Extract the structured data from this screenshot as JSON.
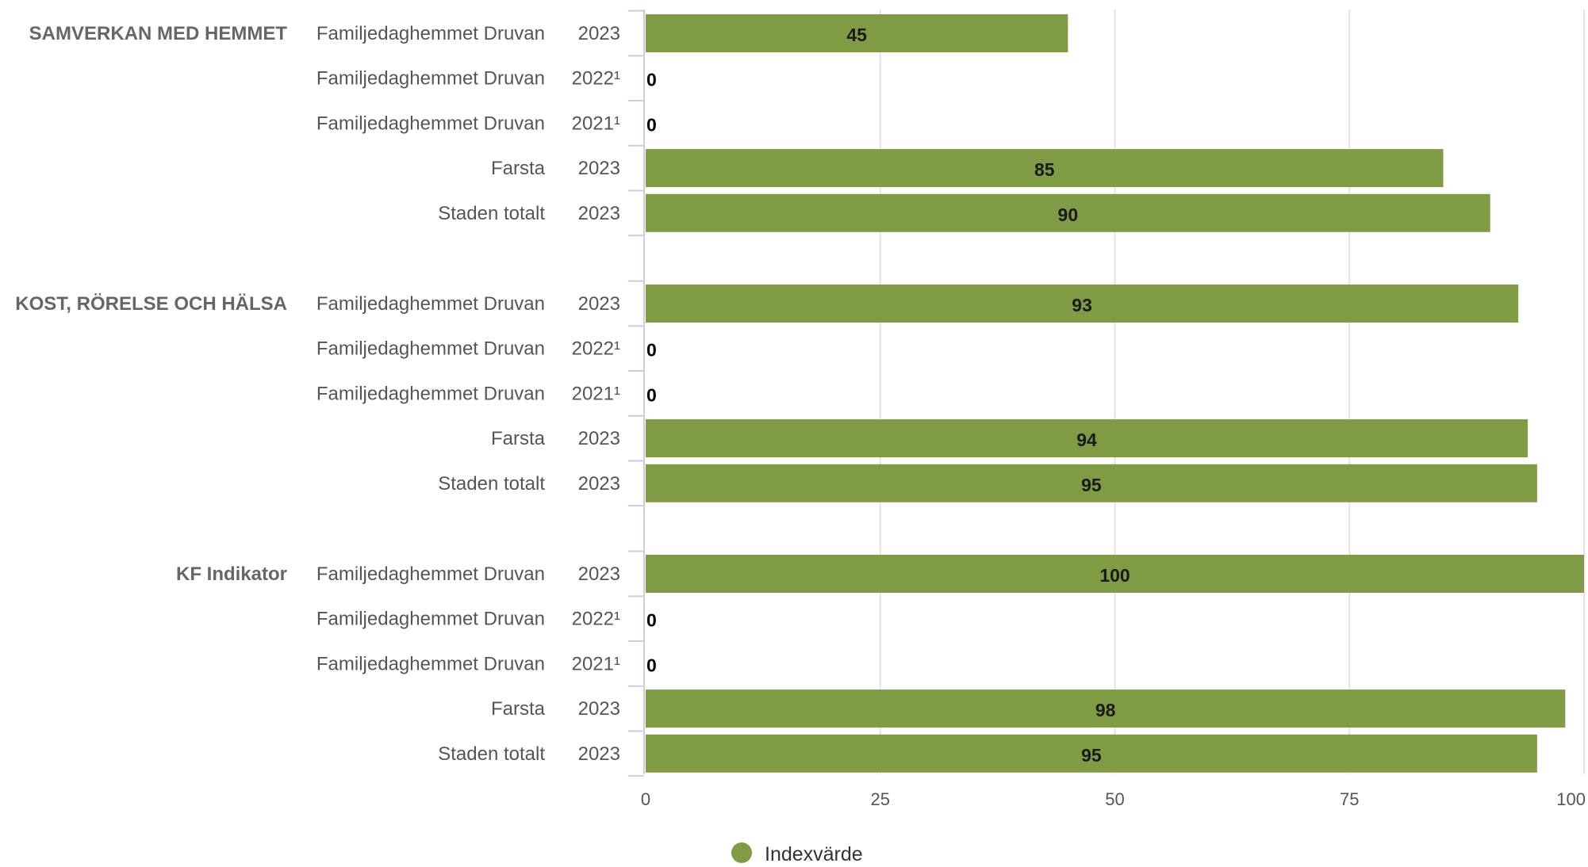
{
  "chart_data": {
    "type": "bar",
    "orientation": "horizontal",
    "xlim": [
      0,
      100
    ],
    "x_ticks": [
      "0",
      "25",
      "50",
      "75",
      "100"
    ],
    "grid": true,
    "legend_position": "bottom-center",
    "series": [
      {
        "name": "Indexvärde",
        "color": "#7f9c45"
      }
    ],
    "groups": [
      {
        "label": "SAMVERKAN MED HEMMET",
        "rows": [
          {
            "name": "Familjedaghemmet Druvan",
            "year": "2023",
            "value": 45,
            "value_label": "45"
          },
          {
            "name": "Familjedaghemmet Druvan",
            "year": "2022¹",
            "value": 0,
            "value_label": "0"
          },
          {
            "name": "Familjedaghemmet Druvan",
            "year": "2021¹",
            "value": 0,
            "value_label": "0"
          },
          {
            "name": "Farsta",
            "year": "2023",
            "value": 85,
            "value_label": "85"
          },
          {
            "name": "Staden totalt",
            "year": "2023",
            "value": 90,
            "value_label": "90"
          }
        ]
      },
      {
        "label": "KOST, RÖRELSE OCH HÄLSA",
        "rows": [
          {
            "name": "Familjedaghemmet Druvan",
            "year": "2023",
            "value": 93,
            "value_label": "93"
          },
          {
            "name": "Familjedaghemmet Druvan",
            "year": "2022¹",
            "value": 0,
            "value_label": "0"
          },
          {
            "name": "Familjedaghemmet Druvan",
            "year": "2021¹",
            "value": 0,
            "value_label": "0"
          },
          {
            "name": "Farsta",
            "year": "2023",
            "value": 94,
            "value_label": "94"
          },
          {
            "name": "Staden totalt",
            "year": "2023",
            "value": 95,
            "value_label": "95"
          }
        ]
      },
      {
        "label": "KF Indikator",
        "rows": [
          {
            "name": "Familjedaghemmet Druvan",
            "year": "2023",
            "value": 100,
            "value_label": "100"
          },
          {
            "name": "Familjedaghemmet Druvan",
            "year": "2022¹",
            "value": 0,
            "value_label": "0"
          },
          {
            "name": "Familjedaghemmet Druvan",
            "year": "2021¹",
            "value": 0,
            "value_label": "0"
          },
          {
            "name": "Farsta",
            "year": "2023",
            "value": 98,
            "value_label": "98"
          },
          {
            "name": "Staden totalt",
            "year": "2023",
            "value": 95,
            "value_label": "95"
          }
        ]
      }
    ]
  }
}
